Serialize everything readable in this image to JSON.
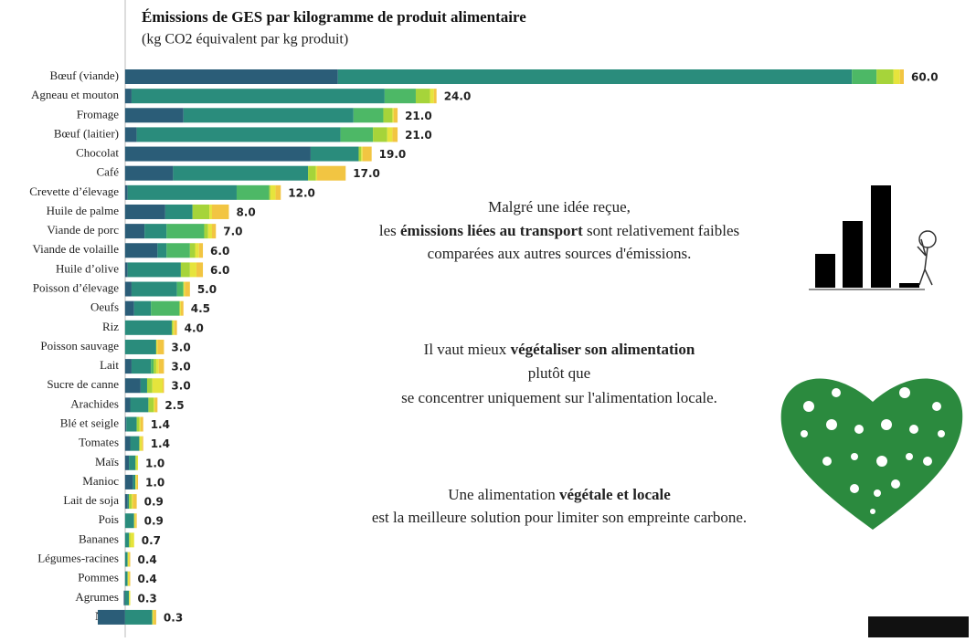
{
  "chart_data": {
    "type": "stacked-hbar",
    "title": "Émissions de GES par kilogramme de produit alimentaire",
    "subtitle": "(kg CO2 équivalent par kg produit)",
    "categories": [
      "Bœuf (viande)",
      "Agneau et mouton",
      "Fromage",
      "Bœuf (laitier)",
      "Chocolat",
      "Café",
      "Crevette d’élevage",
      "Huile de palme",
      "Viande de porc",
      "Viande de volaille",
      "Huile d’olive",
      "Poisson d’élevage",
      "Oeufs",
      "Riz",
      "Poisson sauvage",
      "Lait",
      "Sucre de canne",
      "Arachides",
      "Blé et seigle",
      "Tomates",
      "Maïs",
      "Manioc",
      "Lait de soja",
      "Pois",
      "Bananes",
      "Légumes-racines",
      "Pommes",
      "Agrumes",
      "Noix"
    ],
    "series": [
      {
        "color": "#2b5d78",
        "values": [
          16.4,
          0.5,
          4.5,
          0.9,
          14.3,
          3.7,
          0.2,
          3.1,
          1.5,
          2.5,
          0.2,
          0.5,
          0.7,
          0,
          0,
          0.5,
          1.2,
          0.4,
          0.1,
          0.4,
          0.3,
          0.6,
          0.2,
          0,
          0,
          0,
          0,
          -0.1,
          -2.1
        ]
      },
      {
        "color": "#2a8c7c",
        "values": [
          39.6,
          19.5,
          13.1,
          15.7,
          3.7,
          10.4,
          8.4,
          2.1,
          1.7,
          0.7,
          4.1,
          3.5,
          1.3,
          3.6,
          2.4,
          1.5,
          0.5,
          1.4,
          0.8,
          0.7,
          0.5,
          0.2,
          0.1,
          0.7,
          0.3,
          0.2,
          0.2,
          0.3,
          2.1
        ]
      },
      {
        "color": "#4db866",
        "values": [
          1.9,
          2.4,
          2.3,
          2.5,
          0,
          0,
          2.5,
          0,
          2.9,
          1.8,
          0,
          0.5,
          2.2,
          0,
          0,
          0.2,
          0,
          0,
          0,
          0,
          0,
          0,
          0,
          0,
          0,
          0,
          0,
          0,
          0
        ]
      },
      {
        "color": "#a6d43a",
        "values": [
          1.3,
          1.1,
          0.7,
          1.1,
          0.2,
          0.6,
          0.1,
          1.3,
          0.3,
          0.4,
          0.7,
          0,
          0,
          0.1,
          0,
          0.2,
          0.4,
          0.4,
          0.2,
          0,
          0.1,
          0,
          0.2,
          0,
          0.1,
          0,
          0,
          0,
          0
        ]
      },
      {
        "color": "#e6e43c",
        "values": [
          0.5,
          0.3,
          0.1,
          0.4,
          0.1,
          0.1,
          0.4,
          0.2,
          0.3,
          0.3,
          0.5,
          0.1,
          0.1,
          0.1,
          0.1,
          0.2,
          0.8,
          0.1,
          0.1,
          0.2,
          0.1,
          0.1,
          0.1,
          0.1,
          0.3,
          0.1,
          0.1,
          0.1,
          0.1
        ]
      },
      {
        "color": "#f2c542",
        "values": [
          0.3,
          0.2,
          0.3,
          0.4,
          0.7,
          2.2,
          0.4,
          1.3,
          0.3,
          0.3,
          0.5,
          0.4,
          0.2,
          0.2,
          0.5,
          0.4,
          0.1,
          0.2,
          0.2,
          0.1,
          0,
          0.1,
          0.3,
          0.1,
          0,
          0.1,
          0.1,
          0,
          0.2
        ]
      }
    ],
    "totals": [
      60.0,
      24.0,
      21.0,
      21.0,
      19.0,
      17.0,
      12.0,
      8.0,
      7.0,
      6.0,
      6.0,
      5.0,
      4.5,
      4.0,
      3.0,
      3.0,
      3.0,
      2.5,
      1.4,
      1.4,
      1.0,
      1.0,
      0.9,
      0.9,
      0.7,
      0.4,
      0.4,
      0.3,
      0.3
    ],
    "total_labels": [
      "60.0",
      "24.0",
      "21.0",
      "21.0",
      "19.0",
      "17.0",
      "12.0",
      "8.0",
      "7.0",
      "6.0",
      "6.0",
      "5.0",
      "4.5",
      "4.0",
      "3.0",
      "3.0",
      "3.0",
      "2.5",
      "1.4",
      "1.4",
      "1.0",
      "1.0",
      "0.9",
      "0.9",
      "0.7",
      "0.4",
      "0.4",
      "0.3",
      "0.3"
    ],
    "xlim": [
      -2.1,
      65
    ],
    "annotations": [
      [
        [
          {
            "text": "Malgré une idée reçue,",
            "bold": false
          }
        ],
        [
          {
            "text": "les ",
            "bold": false
          },
          {
            "text": "émissions liées au transport",
            "bold": true
          },
          {
            "text": " sont relativement faibles",
            "bold": false
          }
        ],
        [
          {
            "text": "comparées aux autres sources d'émissions.",
            "bold": false
          }
        ]
      ],
      [
        [
          {
            "text": "Il vaut mieux ",
            "bold": false
          },
          {
            "text": "végétaliser son alimentation",
            "bold": true
          }
        ],
        [
          {
            "text": "plutôt que",
            "bold": false
          }
        ],
        [
          {
            "text": "se concentrer uniquement sur l'alimentation locale.",
            "bold": false
          }
        ]
      ],
      [
        [
          {
            "text": "Une alimentation ",
            "bold": false
          },
          {
            "text": "végétale et locale",
            "bold": true
          }
        ],
        [
          {
            "text": "est la meilleure solution pour limiter son empreinte carbone.",
            "bold": false
          }
        ]
      ]
    ]
  }
}
